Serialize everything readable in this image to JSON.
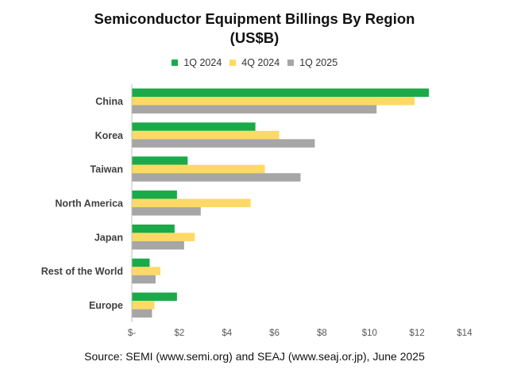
{
  "chart_data": {
    "type": "bar",
    "orientation": "horizontal",
    "title_lines": [
      "Semiconductor Equipment Billings By Region",
      "(US$B)"
    ],
    "categories": [
      "China",
      "Korea",
      "Taiwan",
      "North America",
      "Japan",
      "Rest of the World",
      "Europe"
    ],
    "series": [
      {
        "name": "1Q 2024",
        "color": "#1aaa4a",
        "values": [
          12.5,
          5.2,
          2.35,
          1.9,
          1.8,
          0.75,
          1.9
        ]
      },
      {
        "name": "4Q 2024",
        "color": "#ffd966",
        "values": [
          11.9,
          6.2,
          5.6,
          5.0,
          2.65,
          1.2,
          0.95
        ]
      },
      {
        "name": "1Q 2025",
        "color": "#a6a6a6",
        "values": [
          10.3,
          7.7,
          7.1,
          2.9,
          2.2,
          1.0,
          0.85
        ]
      }
    ],
    "x_ticks": [
      {
        "value": 0,
        "label": "$-"
      },
      {
        "value": 2,
        "label": "$2"
      },
      {
        "value": 4,
        "label": "$4"
      },
      {
        "value": 6,
        "label": "$6"
      },
      {
        "value": 8,
        "label": "$8"
      },
      {
        "value": 10,
        "label": "$10"
      },
      {
        "value": 12,
        "label": "$12"
      },
      {
        "value": 14,
        "label": "$14"
      }
    ],
    "xlim": [
      0,
      14
    ],
    "xlabel": "",
    "ylabel": "",
    "grid": false,
    "legend_position": "top",
    "axis_color": "#bfbfbf",
    "source": "Source: SEMI (www.semi.org) and SEAJ (www.seaj.or.jp), June 2025"
  }
}
